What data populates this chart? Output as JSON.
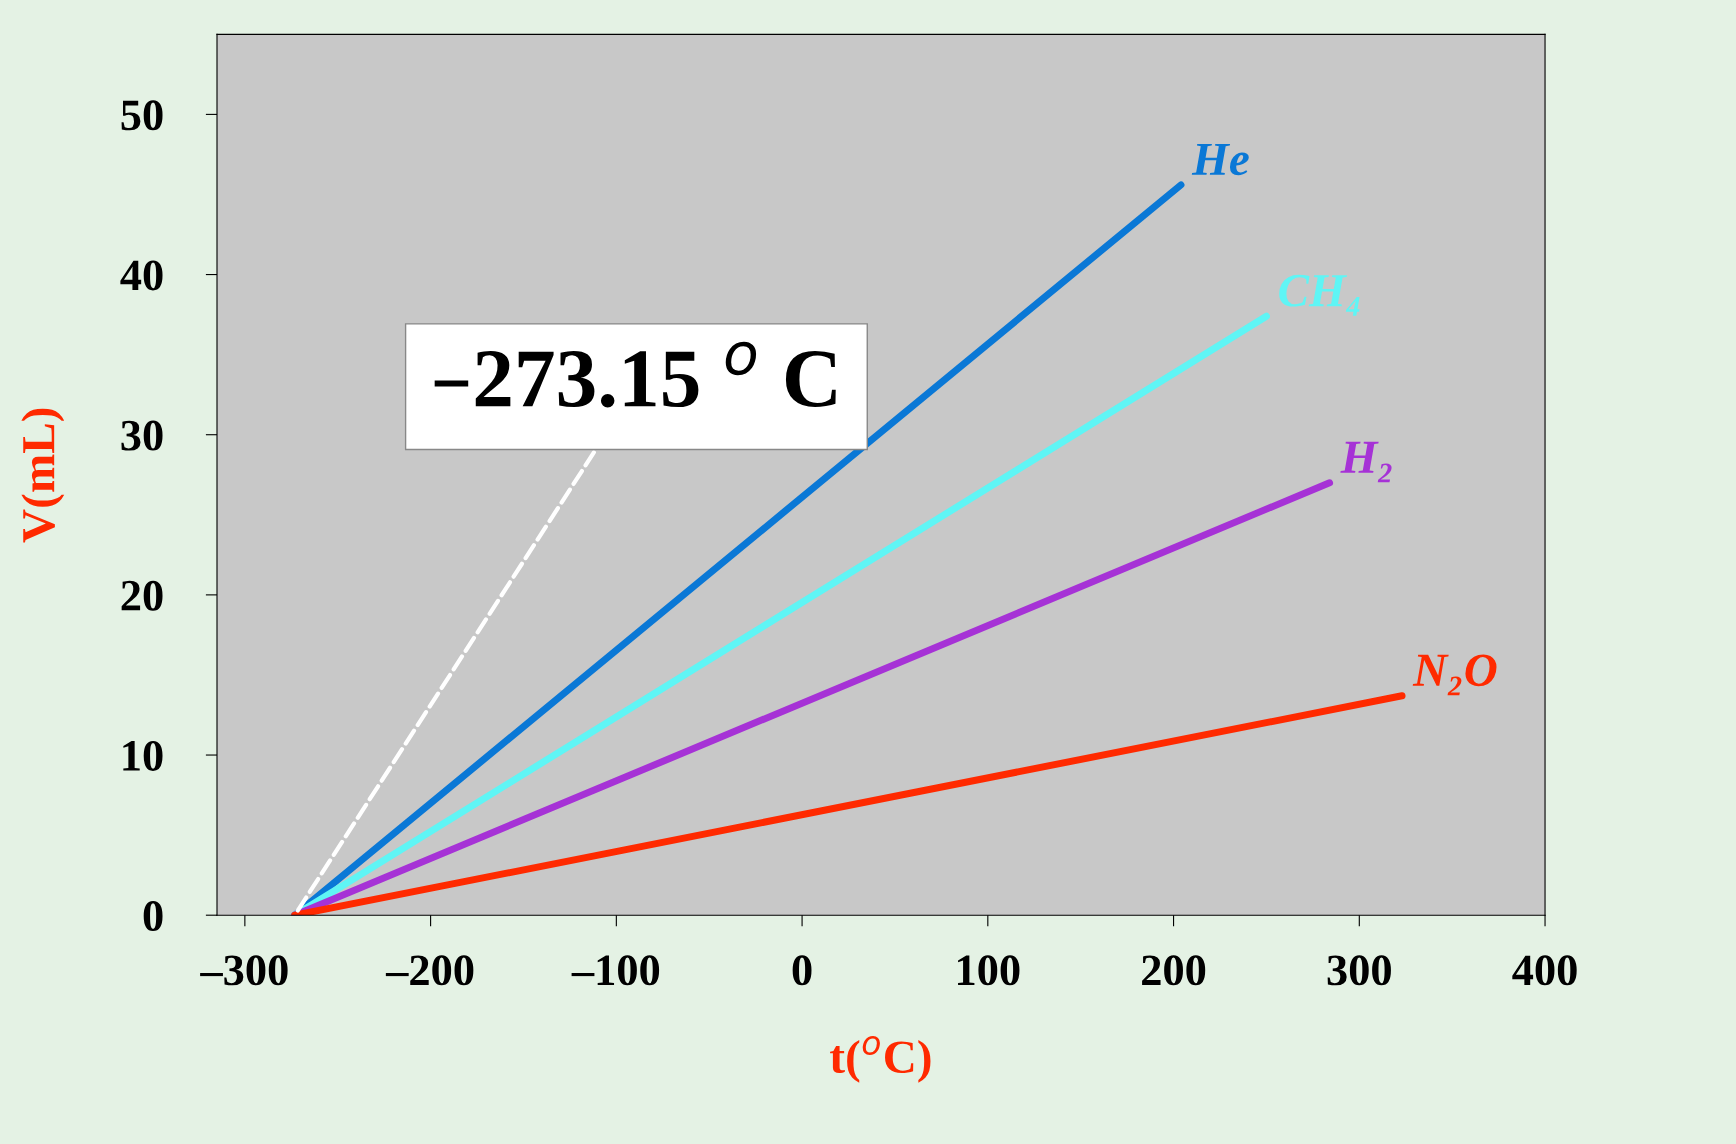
{
  "chart_data": {
    "type": "line",
    "xlabel": "t($^{o}$C)",
    "ylabel": "V(mL)",
    "xlim": [
      -315,
      400
    ],
    "ylim": [
      0,
      55
    ],
    "xticks": [
      {
        "value": -300,
        "label": "–300"
      },
      {
        "value": -200,
        "label": "–200"
      },
      {
        "value": -100,
        "label": "–100"
      },
      0,
      100,
      200,
      300,
      400
    ],
    "yticks": [
      0,
      10,
      20,
      30,
      40,
      50
    ],
    "grid": false,
    "legend": false,
    "line_style": "solid",
    "marker": "none",
    "series": [
      {
        "name": "He",
        "color": "#0a78d6",
        "x": [
          -273.15,
          204
        ],
        "values": [
          0,
          45.6
        ]
      },
      {
        "name": "CH₄",
        "color": "#5ff5f5",
        "x": [
          -273.15,
          250
        ],
        "values": [
          0,
          37.4
        ]
      },
      {
        "name": "H₂",
        "color": "#a632d6",
        "x": [
          -273.15,
          284
        ],
        "values": [
          0,
          27
        ]
      },
      {
        "name": "N₂O",
        "color": "#ff2a00",
        "x": [
          -273.15,
          323
        ],
        "values": [
          0,
          13.7
        ]
      }
    ],
    "annotations": [
      {
        "text": "–273.15 $^{o}$ C",
        "x": -273.15,
        "y": 0
      }
    ]
  }
}
